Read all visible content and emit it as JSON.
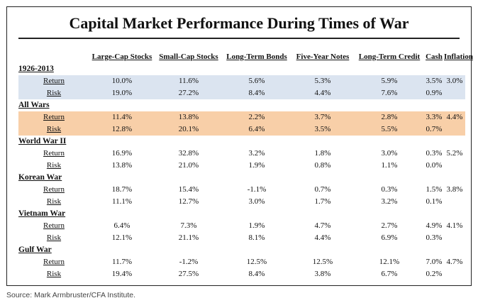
{
  "title": "Capital Market Performance During Times of War",
  "columns": [
    "Large-Cap Stocks",
    "Small-Cap Stocks",
    "Long-Term Bonds",
    "Five-Year Notes",
    "Long-Term Credit",
    "Cash",
    "Inflation"
  ],
  "highlight_colors": {
    "blue": "#dbe4f0",
    "orange": "#f8cfa8"
  },
  "groups": [
    {
      "period": "1926-2013",
      "highlight": "blue",
      "rows": [
        {
          "label": "Return",
          "values": [
            "10.0%",
            "11.6%",
            "5.6%",
            "5.3%",
            "5.9%",
            "3.5%",
            "3.0%"
          ]
        },
        {
          "label": "Risk",
          "values": [
            "19.0%",
            "27.2%",
            "8.4%",
            "4.4%",
            "7.6%",
            "0.9%",
            ""
          ]
        }
      ]
    },
    {
      "period": "All Wars",
      "highlight": "orange",
      "rows": [
        {
          "label": "Return",
          "values": [
            "11.4%",
            "13.8%",
            "2.2%",
            "3.7%",
            "2.8%",
            "3.3%",
            "4.4%"
          ]
        },
        {
          "label": "Risk",
          "values": [
            "12.8%",
            "20.1%",
            "6.4%",
            "3.5%",
            "5.5%",
            "0.7%",
            ""
          ]
        }
      ]
    },
    {
      "period": "World War II",
      "highlight": "",
      "rows": [
        {
          "label": "Return",
          "values": [
            "16.9%",
            "32.8%",
            "3.2%",
            "1.8%",
            "3.0%",
            "0.3%",
            "5.2%"
          ]
        },
        {
          "label": "Risk",
          "values": [
            "13.8%",
            "21.0%",
            "1.9%",
            "0.8%",
            "1.1%",
            "0.0%",
            ""
          ]
        }
      ]
    },
    {
      "period": "Korean War",
      "highlight": "",
      "rows": [
        {
          "label": "Return",
          "values": [
            "18.7%",
            "15.4%",
            "-1.1%",
            "0.7%",
            "0.3%",
            "1.5%",
            "3.8%"
          ]
        },
        {
          "label": "Risk",
          "values": [
            "11.1%",
            "12.7%",
            "3.0%",
            "1.7%",
            "3.2%",
            "0.1%",
            ""
          ]
        }
      ]
    },
    {
      "period": "Vietnam War",
      "highlight": "",
      "rows": [
        {
          "label": "Return",
          "values": [
            "6.4%",
            "7.3%",
            "1.9%",
            "4.7%",
            "2.7%",
            "4.9%",
            "4.1%"
          ]
        },
        {
          "label": "Risk",
          "values": [
            "12.1%",
            "21.1%",
            "8.1%",
            "4.4%",
            "6.9%",
            "0.3%",
            ""
          ]
        }
      ]
    },
    {
      "period": "Gulf War",
      "highlight": "",
      "rows": [
        {
          "label": "Return",
          "values": [
            "11.7%",
            "-1.2%",
            "12.5%",
            "12.5%",
            "12.1%",
            "7.0%",
            "4.7%"
          ]
        },
        {
          "label": "Risk",
          "values": [
            "19.4%",
            "27.5%",
            "8.4%",
            "3.8%",
            "6.7%",
            "0.2%",
            ""
          ]
        }
      ]
    }
  ],
  "source": "Source: Mark Armbruster/CFA Institute."
}
